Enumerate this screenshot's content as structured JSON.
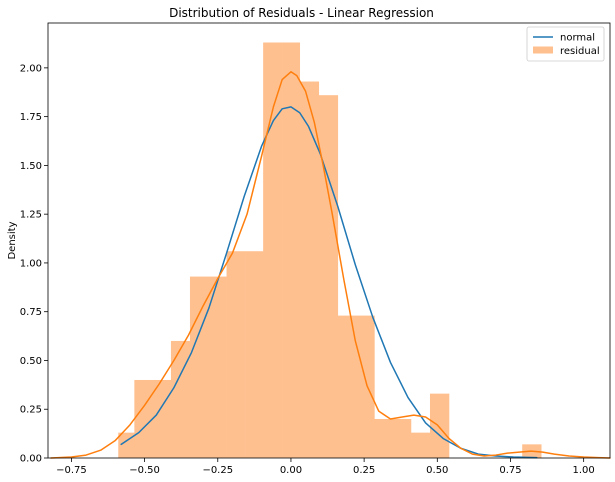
{
  "chart_data": {
    "type": "bar",
    "title": "Distribution of Residuals - Linear Regression",
    "xlabel": "",
    "ylabel": "Density",
    "xlim": [
      -0.83,
      1.09
    ],
    "ylim": [
      0,
      2.23
    ],
    "xticks": [
      -0.75,
      -0.5,
      -0.25,
      0.0,
      0.25,
      0.5,
      0.75,
      1.0
    ],
    "xtick_labels": [
      "−0.75",
      "−0.50",
      "−0.25",
      "0.00",
      "0.25",
      "0.50",
      "0.75",
      "1.00"
    ],
    "yticks": [
      0.0,
      0.25,
      0.5,
      0.75,
      1.0,
      1.25,
      1.5,
      1.75,
      2.0
    ],
    "ytick_labels": [
      "0.00",
      "0.25",
      "0.50",
      "0.75",
      "1.00",
      "1.25",
      "1.50",
      "1.75",
      "2.00"
    ],
    "grid": false,
    "legend_position": "top-right",
    "histogram": {
      "name": "residual",
      "color": "#ffc08f",
      "bins": [
        {
          "x0": -0.59,
          "x1": -0.535,
          "density": 0.13
        },
        {
          "x0": -0.535,
          "x1": -0.47,
          "density": 0.4
        },
        {
          "x0": -0.47,
          "x1": -0.41,
          "density": 0.4
        },
        {
          "x0": -0.41,
          "x1": -0.345,
          "density": 0.6
        },
        {
          "x0": -0.345,
          "x1": -0.28,
          "density": 0.93
        },
        {
          "x0": -0.28,
          "x1": -0.22,
          "density": 0.93
        },
        {
          "x0": -0.22,
          "x1": -0.155,
          "density": 1.06
        },
        {
          "x0": -0.155,
          "x1": -0.095,
          "density": 1.06
        },
        {
          "x0": -0.095,
          "x1": -0.03,
          "density": 2.13
        },
        {
          "x0": -0.03,
          "x1": 0.03,
          "density": 2.13
        },
        {
          "x0": 0.03,
          "x1": 0.095,
          "density": 1.93
        },
        {
          "x0": 0.095,
          "x1": 0.16,
          "density": 1.86
        },
        {
          "x0": 0.16,
          "x1": 0.22,
          "density": 0.73
        },
        {
          "x0": 0.22,
          "x1": 0.285,
          "density": 0.73
        },
        {
          "x0": 0.285,
          "x1": 0.35,
          "density": 0.2
        },
        {
          "x0": 0.35,
          "x1": 0.41,
          "density": 0.2
        },
        {
          "x0": 0.41,
          "x1": 0.475,
          "density": 0.13
        },
        {
          "x0": 0.475,
          "x1": 0.54,
          "density": 0.33
        },
        {
          "x0": 0.54,
          "x1": 0.6,
          "density": 0.0
        },
        {
          "x0": 0.6,
          "x1": 0.665,
          "density": 0.0
        },
        {
          "x0": 0.665,
          "x1": 0.73,
          "density": 0.0
        },
        {
          "x0": 0.73,
          "x1": 0.79,
          "density": 0.0
        },
        {
          "x0": 0.79,
          "x1": 0.855,
          "density": 0.07
        }
      ]
    },
    "series": [
      {
        "name": "normal",
        "color": "#1f77b4",
        "x": [
          -0.58,
          -0.52,
          -0.46,
          -0.4,
          -0.34,
          -0.28,
          -0.22,
          -0.16,
          -0.1,
          -0.06,
          -0.03,
          0.0,
          0.03,
          0.06,
          0.1,
          0.16,
          0.22,
          0.28,
          0.34,
          0.4,
          0.46,
          0.52,
          0.58,
          0.64,
          0.7,
          0.76,
          0.84
        ],
        "y": [
          0.07,
          0.13,
          0.22,
          0.36,
          0.54,
          0.77,
          1.05,
          1.34,
          1.6,
          1.73,
          1.79,
          1.8,
          1.77,
          1.7,
          1.56,
          1.29,
          0.99,
          0.72,
          0.49,
          0.31,
          0.18,
          0.1,
          0.05,
          0.02,
          0.01,
          0.005,
          0.002
        ]
      },
      {
        "name": "residual",
        "color": "#ff7f0e",
        "x": [
          -0.82,
          -0.75,
          -0.7,
          -0.65,
          -0.6,
          -0.55,
          -0.5,
          -0.45,
          -0.4,
          -0.35,
          -0.3,
          -0.25,
          -0.2,
          -0.15,
          -0.1,
          -0.06,
          -0.03,
          0.0,
          0.02,
          0.05,
          0.08,
          0.11,
          0.14,
          0.18,
          0.22,
          0.26,
          0.3,
          0.34,
          0.38,
          0.42,
          0.46,
          0.5,
          0.54,
          0.58,
          0.62,
          0.66,
          0.7,
          0.74,
          0.78,
          0.82,
          0.86,
          0.9,
          0.95,
          1.0,
          1.05,
          1.09
        ],
        "y": [
          0.0,
          0.005,
          0.015,
          0.04,
          0.09,
          0.17,
          0.27,
          0.38,
          0.5,
          0.63,
          0.78,
          0.92,
          1.05,
          1.25,
          1.55,
          1.8,
          1.94,
          1.98,
          1.96,
          1.88,
          1.72,
          1.5,
          1.26,
          0.92,
          0.6,
          0.37,
          0.24,
          0.2,
          0.21,
          0.22,
          0.21,
          0.17,
          0.1,
          0.05,
          0.02,
          0.01,
          0.015,
          0.025,
          0.03,
          0.035,
          0.03,
          0.02,
          0.01,
          0.005,
          0.002,
          0.0
        ]
      }
    ]
  }
}
